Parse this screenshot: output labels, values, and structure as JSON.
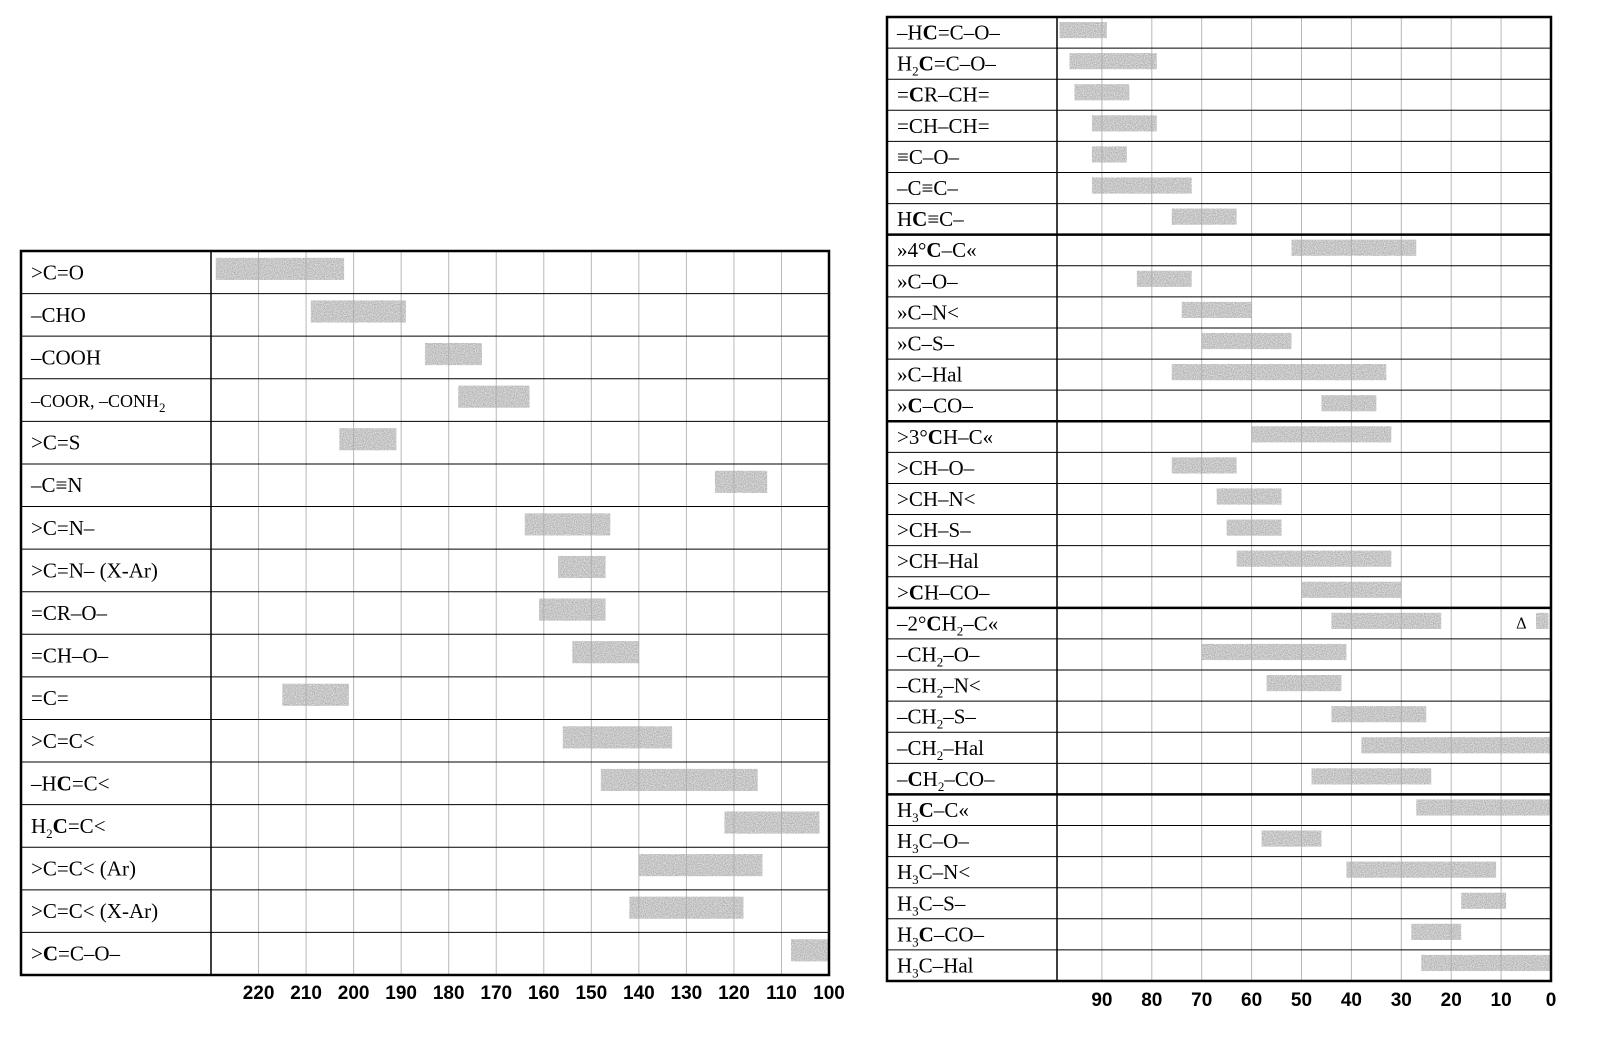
{
  "chart_data": [
    {
      "type": "bar",
      "orientation": "horizontal-range",
      "xlim": [
        230,
        100
      ],
      "ticks": [
        "220",
        "210",
        "200",
        "190",
        "180",
        "170",
        "160",
        "150",
        "140",
        "130",
        "120",
        "110",
        "100"
      ],
      "rows": [
        {
          "label": [
            {
              "t": ">C=O"
            }
          ],
          "range": [
            229,
            202
          ]
        },
        {
          "label": [
            {
              "t": "–CHO"
            }
          ],
          "range": [
            209,
            189
          ]
        },
        {
          "label": [
            {
              "t": "–COOH"
            }
          ],
          "range": [
            185,
            173
          ]
        },
        {
          "label": [
            {
              "t": "–COOR, –CONH"
            },
            {
              "t": "2",
              "sub": true
            }
          ],
          "small": true,
          "range": [
            178,
            163
          ]
        },
        {
          "label": [
            {
              "t": ">C=S"
            }
          ],
          "range": [
            203,
            191
          ]
        },
        {
          "label": [
            {
              "t": "–C≡N"
            }
          ],
          "range": [
            124,
            113
          ]
        },
        {
          "label": [
            {
              "t": ">C=N–"
            }
          ],
          "range": [
            164,
            146
          ]
        },
        {
          "label": [
            {
              "t": ">C=N– (X-Ar)"
            }
          ],
          "range": [
            157,
            147
          ]
        },
        {
          "label": [
            {
              "t": "=CR–O–"
            }
          ],
          "range": [
            161,
            147
          ]
        },
        {
          "label": [
            {
              "t": "=CH–O–"
            }
          ],
          "range": [
            154,
            140
          ]
        },
        {
          "label": [
            {
              "t": "=C="
            }
          ],
          "range": [
            215,
            201
          ]
        },
        {
          "label": [
            {
              "t": ">C=C<"
            }
          ],
          "range": [
            156,
            133
          ]
        },
        {
          "label": [
            {
              "t": "–H"
            },
            {
              "t": "C",
              "b": true
            },
            {
              "t": "=C<"
            }
          ],
          "range": [
            148,
            115
          ]
        },
        {
          "label": [
            {
              "t": "H"
            },
            {
              "t": "2",
              "sub": true
            },
            {
              "t": "C",
              "b": true
            },
            {
              "t": "=C<"
            }
          ],
          "range": [
            122,
            102
          ]
        },
        {
          "label": [
            {
              "t": ">C=C< (Ar)"
            }
          ],
          "range": [
            140,
            114
          ]
        },
        {
          "label": [
            {
              "t": ">C=C< (X-Ar)"
            }
          ],
          "range": [
            142,
            118
          ]
        },
        {
          "label": [
            {
              "t": ">"
            },
            {
              "t": "C",
              "b": true
            },
            {
              "t": "=C–O–"
            }
          ],
          "range": [
            108,
            100
          ]
        }
      ]
    },
    {
      "type": "bar",
      "orientation": "horizontal-range",
      "xlim": [
        99,
        0
      ],
      "ticks": [
        "90",
        "80",
        "70",
        "60",
        "50",
        "40",
        "30",
        "20",
        "10",
        "0"
      ],
      "rows": [
        {
          "label": [
            {
              "t": "–H"
            },
            {
              "t": "C",
              "b": true
            },
            {
              "t": "=C–O–"
            }
          ],
          "range": [
            98.5,
            89
          ]
        },
        {
          "label": [
            {
              "t": "H"
            },
            {
              "t": "2",
              "sub": true
            },
            {
              "t": "C",
              "b": true
            },
            {
              "t": "=C–O–"
            }
          ],
          "range": [
            96.5,
            79
          ]
        },
        {
          "label": [
            {
              "t": "="
            },
            {
              "t": "C",
              "b": true
            },
            {
              "t": "R–CH="
            }
          ],
          "range": [
            95.5,
            84.5
          ]
        },
        {
          "label": [
            {
              "t": "=CH–CH="
            }
          ],
          "range": [
            92,
            79
          ]
        },
        {
          "label": [
            {
              "t": "≡C–O–"
            }
          ],
          "range": [
            92,
            85
          ]
        },
        {
          "label": [
            {
              "t": "–C≡C–"
            }
          ],
          "range": [
            92,
            72
          ]
        },
        {
          "label": [
            {
              "t": "H"
            },
            {
              "t": "C",
              "b": true
            },
            {
              "t": "≡C–"
            }
          ],
          "range": [
            76,
            63
          ]
        },
        {
          "label": [
            {
              "t": "»4°"
            },
            {
              "t": "C",
              "b": true
            },
            {
              "t": "–C«"
            }
          ],
          "range": [
            52,
            27
          ]
        },
        {
          "label": [
            {
              "t": "»C–O–"
            }
          ],
          "range": [
            83,
            72
          ]
        },
        {
          "label": [
            {
              "t": "»C–N<"
            }
          ],
          "range": [
            74,
            60
          ]
        },
        {
          "label": [
            {
              "t": "»C–S–"
            }
          ],
          "range": [
            70,
            52
          ]
        },
        {
          "label": [
            {
              "t": "»C–Hal"
            }
          ],
          "range": [
            76,
            33
          ]
        },
        {
          "label": [
            {
              "t": "»"
            },
            {
              "t": "C",
              "b": true
            },
            {
              "t": "–CO–"
            }
          ],
          "range": [
            46,
            35
          ]
        },
        {
          "label": [
            {
              "t": ">3°"
            },
            {
              "t": "C",
              "b": true
            },
            {
              "t": "H–C«"
            }
          ],
          "range": [
            60,
            32
          ]
        },
        {
          "label": [
            {
              "t": ">CH–O–"
            }
          ],
          "range": [
            76,
            63
          ]
        },
        {
          "label": [
            {
              "t": ">CH–N<"
            }
          ],
          "range": [
            67,
            54
          ]
        },
        {
          "label": [
            {
              "t": ">CH–S–"
            }
          ],
          "range": [
            65,
            54
          ]
        },
        {
          "label": [
            {
              "t": ">CH–Hal"
            }
          ],
          "range": [
            63,
            32
          ]
        },
        {
          "label": [
            {
              "t": ">"
            },
            {
              "t": "C",
              "b": true
            },
            {
              "t": "H–CO–"
            }
          ],
          "range": [
            50,
            30
          ]
        },
        {
          "label": [
            {
              "t": "–2°"
            },
            {
              "t": "C",
              "b": true
            },
            {
              "t": "H"
            },
            {
              "t": "2",
              "sub": true
            },
            {
              "t": "–C«"
            }
          ],
          "range": [
            44,
            22
          ],
          "extra": {
            "range": [
              3,
              0.5
            ],
            "note": "Δ"
          }
        },
        {
          "label": [
            {
              "t": "–CH"
            },
            {
              "t": "2",
              "sub": true
            },
            {
              "t": "–O–"
            }
          ],
          "range": [
            70,
            41
          ]
        },
        {
          "label": [
            {
              "t": "–CH"
            },
            {
              "t": "2",
              "sub": true
            },
            {
              "t": "–N<"
            }
          ],
          "range": [
            57,
            42
          ]
        },
        {
          "label": [
            {
              "t": "–CH"
            },
            {
              "t": "2",
              "sub": true
            },
            {
              "t": "–S–"
            }
          ],
          "range": [
            44,
            25
          ]
        },
        {
          "label": [
            {
              "t": "–CH"
            },
            {
              "t": "2",
              "sub": true
            },
            {
              "t": "–Hal"
            }
          ],
          "range": [
            38,
            0
          ]
        },
        {
          "label": [
            {
              "t": "–"
            },
            {
              "t": "C",
              "b": true
            },
            {
              "t": "H"
            },
            {
              "t": "2",
              "sub": true
            },
            {
              "t": "–CO–"
            }
          ],
          "range": [
            48,
            24
          ]
        },
        {
          "label": [
            {
              "t": "H"
            },
            {
              "t": "3",
              "sub": true
            },
            {
              "t": "C",
              "b": true
            },
            {
              "t": "–C«"
            }
          ],
          "range": [
            27,
            0
          ]
        },
        {
          "label": [
            {
              "t": "H"
            },
            {
              "t": "3",
              "sub": true
            },
            {
              "t": "C–O–"
            }
          ],
          "range": [
            58,
            46
          ]
        },
        {
          "label": [
            {
              "t": "H"
            },
            {
              "t": "3",
              "sub": true
            },
            {
              "t": "C–N<"
            }
          ],
          "range": [
            41,
            11
          ]
        },
        {
          "label": [
            {
              "t": "H"
            },
            {
              "t": "3",
              "sub": true
            },
            {
              "t": "C–S–"
            }
          ],
          "range": [
            18,
            9
          ]
        },
        {
          "label": [
            {
              "t": "H"
            },
            {
              "t": "3",
              "sub": true
            },
            {
              "t": "C",
              "b": true
            },
            {
              "t": "–CO–"
            }
          ],
          "range": [
            28,
            18
          ]
        },
        {
          "label": [
            {
              "t": "H"
            },
            {
              "t": "3",
              "sub": true
            },
            {
              "t": "C–Hal"
            }
          ],
          "range": [
            26,
            0
          ]
        }
      ]
    }
  ],
  "colors": {
    "bar": "#a9a9a9",
    "grid": "#b8b8b8",
    "frame": "#000000"
  }
}
